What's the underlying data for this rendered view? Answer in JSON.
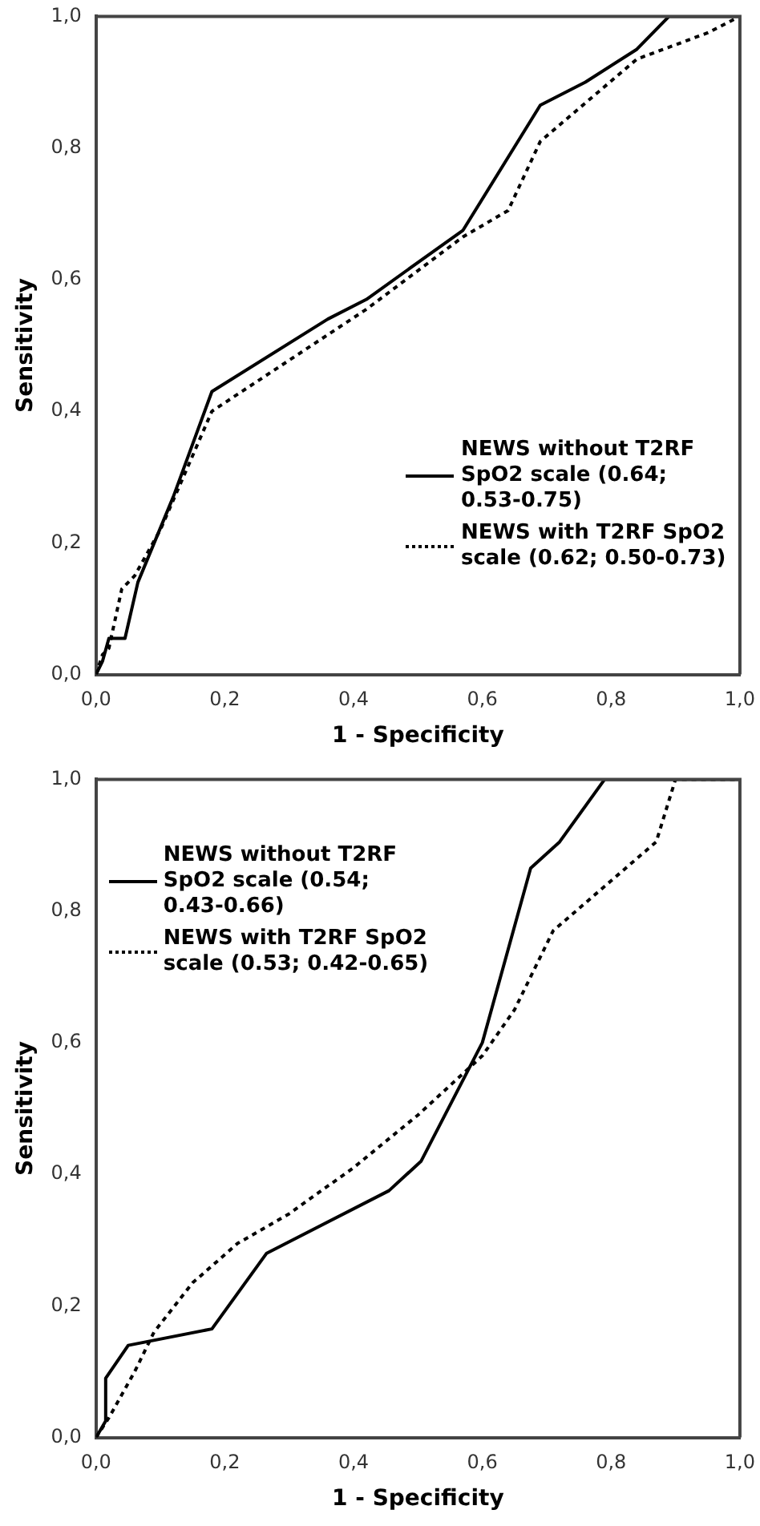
{
  "chart_data": [
    {
      "type": "line",
      "xlabel": "1 - Specificity",
      "ylabel": "Sensitivity",
      "xlim": [
        0,
        1
      ],
      "ylim": [
        0,
        1
      ],
      "xticks": [
        {
          "value": 0,
          "label": "0,0"
        },
        {
          "value": 0.2,
          "label": "0,2"
        },
        {
          "value": 0.4,
          "label": "0,4"
        },
        {
          "value": 0.6,
          "label": "0,6"
        },
        {
          "value": 0.8,
          "label": "0,8"
        },
        {
          "value": 1,
          "label": "1,0"
        }
      ],
      "yticks": [
        {
          "value": 0,
          "label": "0,0"
        },
        {
          "value": 0.2,
          "label": "0,2"
        },
        {
          "value": 0.4,
          "label": "0,4"
        },
        {
          "value": 0.6,
          "label": "0,6"
        },
        {
          "value": 0.8,
          "label": "0,8"
        },
        {
          "value": 1,
          "label": "1,0"
        }
      ],
      "grid": false,
      "legend": "bottom right",
      "marker": "none",
      "series": [
        {
          "name": "NEWS without T2RF SpO2 scale (0.64; 0.53-0.75)",
          "color": "#000000",
          "line_style": "solid",
          "x": [
            0,
            0.01,
            0.02,
            0.045,
            0.065,
            0.12,
            0.18,
            0.36,
            0.42,
            0.57,
            0.69,
            0.76,
            0.84,
            0.89,
            1
          ],
          "values": [
            0,
            0.02,
            0.055,
            0.055,
            0.14,
            0.27,
            0.43,
            0.54,
            0.57,
            0.675,
            0.865,
            0.9,
            0.95,
            1,
            1
          ]
        },
        {
          "name": "NEWS with T2RF SpO2 scale (0.62; 0.50-0.73)",
          "color": "#000000",
          "line_style": "dotted",
          "x": [
            0,
            0.01,
            0.02,
            0.04,
            0.06,
            0.1,
            0.18,
            0.42,
            0.57,
            0.64,
            0.69,
            0.84,
            0.95,
            1
          ],
          "values": [
            0,
            0.03,
            0.04,
            0.13,
            0.15,
            0.22,
            0.4,
            0.555,
            0.665,
            0.705,
            0.81,
            0.935,
            0.975,
            1
          ]
        }
      ]
    },
    {
      "type": "line",
      "xlabel": "1 - Specificity",
      "ylabel": "Sensitivity",
      "xlim": [
        0,
        1
      ],
      "ylim": [
        0,
        1
      ],
      "xticks": [
        {
          "value": 0,
          "label": "0,0"
        },
        {
          "value": 0.2,
          "label": "0,2"
        },
        {
          "value": 0.4,
          "label": "0,4"
        },
        {
          "value": 0.6,
          "label": "0,6"
        },
        {
          "value": 0.8,
          "label": "0,8"
        },
        {
          "value": 1,
          "label": "1,0"
        }
      ],
      "yticks": [
        {
          "value": 0,
          "label": "0,0"
        },
        {
          "value": 0.2,
          "label": "0,2"
        },
        {
          "value": 0.4,
          "label": "0,4"
        },
        {
          "value": 0.6,
          "label": "0,6"
        },
        {
          "value": 0.8,
          "label": "0,8"
        },
        {
          "value": 1,
          "label": "1,0"
        }
      ],
      "grid": false,
      "legend": "top left",
      "marker": "none",
      "series": [
        {
          "name": "NEWS without T2RF SpO2 scale (0.54; 0.43-0.66)",
          "color": "#000000",
          "line_style": "solid",
          "x": [
            0,
            0.015,
            0.015,
            0.05,
            0.18,
            0.265,
            0.455,
            0.505,
            0.6,
            0.675,
            0.72,
            0.79,
            1
          ],
          "values": [
            0,
            0.025,
            0.09,
            0.14,
            0.165,
            0.28,
            0.375,
            0.42,
            0.6,
            0.865,
            0.905,
            1,
            1
          ]
        },
        {
          "name": "NEWS with T2RF SpO2 scale (0.53; 0.42-0.65)",
          "color": "#000000",
          "line_style": "dotted",
          "x": [
            0,
            0.02,
            0.06,
            0.09,
            0.15,
            0.22,
            0.3,
            0.4,
            0.5,
            0.6,
            0.65,
            0.71,
            0.87,
            0.9,
            1
          ],
          "values": [
            0,
            0.03,
            0.1,
            0.16,
            0.235,
            0.295,
            0.34,
            0.41,
            0.49,
            0.58,
            0.65,
            0.77,
            0.905,
            1,
            1
          ]
        }
      ]
    }
  ]
}
